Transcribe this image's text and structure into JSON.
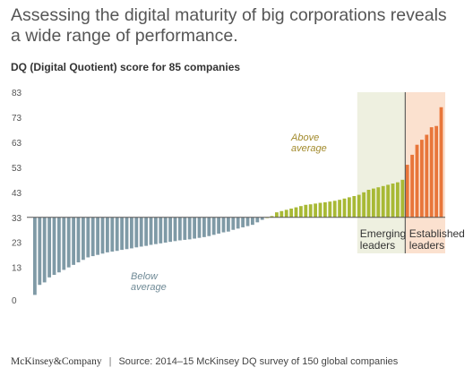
{
  "title": "Assessing the digital maturity of big corporations reveals a wide range of performance.",
  "chart_data": {
    "type": "bar",
    "title": "DQ (Digital Quotient) score for 85 companies",
    "y_ticks": [
      0,
      13,
      23,
      33,
      43,
      53,
      63,
      73,
      83
    ],
    "ylim": [
      0,
      83
    ],
    "baseline": 33,
    "grid": false,
    "values": [
      2,
      6,
      7,
      9,
      10,
      11,
      12,
      13,
      14,
      15,
      16,
      17,
      17.5,
      18,
      18.5,
      19,
      19.3,
      19.6,
      20,
      20.3,
      20.6,
      21,
      21.3,
      21.6,
      22,
      22.3,
      22.6,
      22.9,
      23.2,
      23.5,
      23.8,
      24,
      24.2,
      24.5,
      24.8,
      25.1,
      25.5,
      26,
      26.5,
      27,
      27.3,
      28,
      28.5,
      29,
      29.5,
      30,
      31,
      32,
      33,
      33.5,
      35,
      35.5,
      36,
      36.5,
      37,
      37.5,
      38,
      38.2,
      38.5,
      38.8,
      39,
      39.3,
      39.6,
      40,
      40.5,
      41,
      41.5,
      42,
      43,
      44,
      44.5,
      45,
      45.5,
      46,
      46.5,
      47,
      48,
      54,
      58,
      62,
      64,
      66,
      69,
      69.5,
      77
    ],
    "segments": [
      {
        "name": "Below average",
        "start": 0,
        "end": 48,
        "color": "#7f9aa6"
      },
      {
        "name": "Above average",
        "start": 48,
        "end": 77,
        "color": "#a8b935"
      },
      {
        "name": "Established leaders",
        "start": 77,
        "end": 85,
        "color": "#e8763a"
      }
    ],
    "annotations": {
      "below_average": "Below average",
      "above_average": "Above average",
      "emerging_leaders": "Emerging leaders",
      "established_leaders": "Established leaders"
    },
    "regions": {
      "emerging": {
        "start": 67,
        "end": 77,
        "color": "#eef0e0"
      },
      "established": {
        "start": 77,
        "end": 85,
        "color": "#fbe1cf"
      }
    }
  },
  "footer": {
    "logo": "McKinsey&Company",
    "source": "Source: 2014–15 McKinsey DQ survey of 150 global companies"
  }
}
